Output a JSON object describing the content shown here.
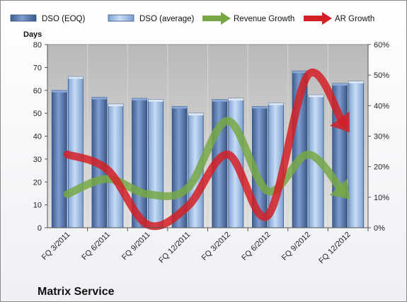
{
  "chart_data": {
    "type": "bar",
    "title": "Matrix Service",
    "ylabel": "Days",
    "ylim": [
      0,
      80
    ],
    "y2lim": [
      0,
      60
    ],
    "yticks": [
      "0",
      "10",
      "20",
      "30",
      "40",
      "50",
      "60",
      "70",
      "80"
    ],
    "y2ticks": [
      "0%",
      "10%",
      "20%",
      "30%",
      "40%",
      "50%",
      "60%"
    ],
    "categories": [
      "FQ 3/2011",
      "FQ 6/2011",
      "FQ 9/2011",
      "FQ 12/2011",
      "FQ 3/2012",
      "FQ 6/2012",
      "FQ 9/2012",
      "FQ 12/2012"
    ],
    "series": [
      {
        "name": "DSO (EOQ)",
        "kind": "bar",
        "axis": "left",
        "color": "#5a7bb0",
        "values": [
          60,
          57,
          56.5,
          53,
          56,
          53,
          68.5,
          63
        ]
      },
      {
        "name": "DSO (average)",
        "kind": "bar",
        "axis": "left",
        "color": "#a9c5ea",
        "values": [
          66,
          54,
          56,
          50,
          56.5,
          54.5,
          58,
          64
        ]
      },
      {
        "name": "Revenue Growth",
        "kind": "arrow",
        "axis": "right",
        "color": "#77a845",
        "values": [
          11,
          16,
          11,
          13,
          35,
          12,
          24,
          10
        ]
      },
      {
        "name": "AR Growth",
        "kind": "arrow",
        "axis": "right",
        "color": "#d32026",
        "values": [
          24,
          19,
          1,
          7,
          24,
          4,
          50,
          32
        ]
      }
    ],
    "grid": false,
    "legend_position": "top"
  }
}
